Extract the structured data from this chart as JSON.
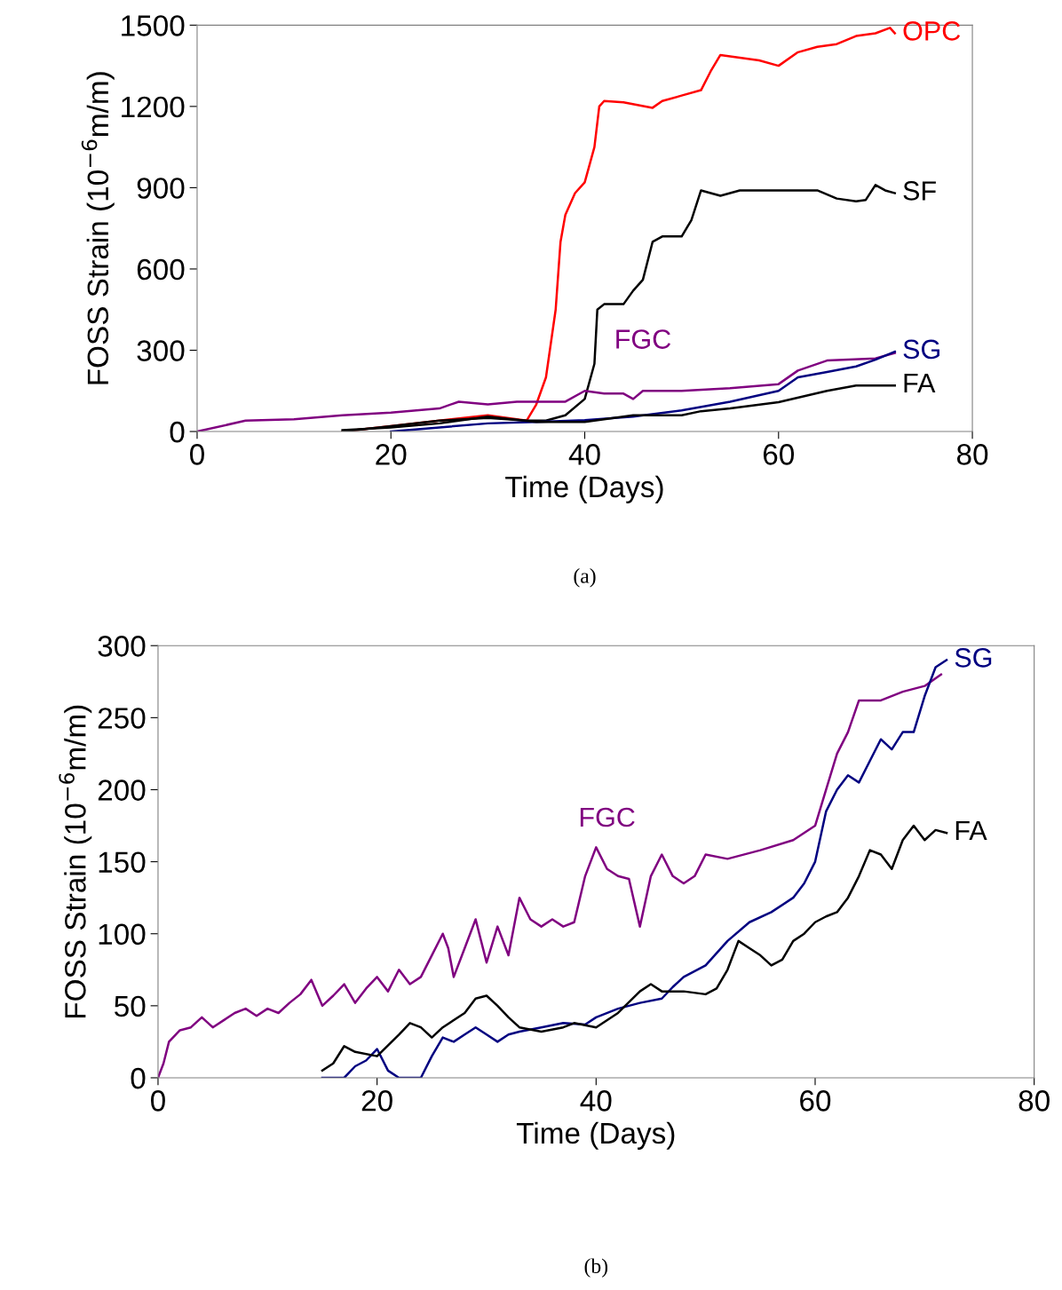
{
  "chart_data": [
    {
      "type": "line",
      "xlabel": "Time (Days)",
      "ylabel": "FOSS Strain (10$^{−6}$m/m)",
      "xlim": [
        0,
        80
      ],
      "ylim": [
        0,
        1500
      ],
      "xticks": [
        0,
        20,
        40,
        60,
        80
      ],
      "yticks": [
        0,
        300,
        600,
        900,
        1200,
        1500
      ],
      "grid": false,
      "marker": "none",
      "line_style": "solid",
      "series": [
        {
          "name": "OPC",
          "color": "#ff0000",
          "x": [
            15,
            20,
            25,
            30,
            33,
            34,
            35,
            36,
            37,
            37.5,
            38,
            39,
            40,
            41,
            41.5,
            42,
            44,
            47,
            48,
            50,
            52,
            53,
            54,
            56,
            58,
            60,
            62,
            64,
            66,
            68,
            70,
            71.5,
            72
          ],
          "values": [
            0,
            20,
            40,
            60,
            45,
            40,
            100,
            200,
            450,
            700,
            800,
            880,
            920,
            1050,
            1200,
            1220,
            1215,
            1195,
            1220,
            1240,
            1260,
            1330,
            1390,
            1380,
            1370,
            1350,
            1400,
            1420,
            1430,
            1460,
            1470,
            1490,
            1470
          ]
        },
        {
          "name": "SF",
          "color": "#000000",
          "x": [
            15,
            20,
            25,
            30,
            34,
            36,
            38,
            40,
            41,
            41.3,
            42,
            44,
            45,
            46,
            47,
            48,
            50,
            51,
            52,
            54,
            56,
            60,
            64,
            66,
            68,
            69,
            70,
            71,
            72
          ],
          "values": [
            0,
            20,
            40,
            50,
            40,
            40,
            60,
            120,
            250,
            450,
            470,
            470,
            520,
            560,
            700,
            720,
            720,
            780,
            890,
            870,
            890,
            890,
            890,
            860,
            850,
            855,
            910,
            890,
            880
          ]
        },
        {
          "name": "FGC",
          "color": "#800080",
          "x": [
            0,
            5,
            10,
            15,
            20,
            25,
            27,
            30,
            33,
            35,
            38,
            40,
            42,
            44,
            45,
            46,
            50,
            55,
            60,
            62,
            65,
            70,
            72
          ],
          "values": [
            0,
            40,
            45,
            60,
            70,
            85,
            110,
            100,
            110,
            110,
            110,
            150,
            140,
            140,
            120,
            150,
            150,
            160,
            175,
            225,
            262,
            270,
            290
          ]
        },
        {
          "name": "SG",
          "color": "#000080",
          "x": [
            20,
            25,
            30,
            35,
            40,
            45,
            50,
            55,
            60,
            62,
            65,
            68,
            70,
            72
          ],
          "values": [
            0,
            15,
            30,
            35,
            42,
            55,
            78,
            110,
            150,
            200,
            220,
            240,
            265,
            295
          ]
        },
        {
          "name": "FA",
          "color": "#000000",
          "x": [
            15,
            20,
            25,
            30,
            35,
            40,
            45,
            50,
            52,
            55,
            60,
            65,
            68,
            70,
            72
          ],
          "values": [
            5,
            15,
            30,
            55,
            35,
            35,
            60,
            60,
            75,
            85,
            108,
            150,
            170,
            170,
            170
          ]
        }
      ],
      "annotations": [
        "(a)"
      ]
    },
    {
      "type": "line",
      "xlabel": "Time (Days)",
      "ylabel": "FOSS Strain (10$^{−6}$m/m)",
      "xlim": [
        0,
        80
      ],
      "ylim": [
        0,
        300
      ],
      "xticks": [
        0,
        20,
        40,
        60,
        80
      ],
      "yticks": [
        0,
        50,
        100,
        150,
        200,
        250,
        300
      ],
      "grid": false,
      "marker": "none",
      "line_style": "solid",
      "series": [
        {
          "name": "FGC",
          "color": "#800080",
          "x": [
            0,
            0.5,
            1,
            2,
            3,
            4,
            5,
            6,
            7,
            8,
            9,
            10,
            11,
            12,
            13,
            14,
            15,
            16,
            17,
            18,
            19,
            20,
            21,
            22,
            23,
            24,
            25,
            26,
            26.5,
            27,
            28,
            29,
            29.5,
            30,
            31,
            32,
            33,
            34,
            35,
            36,
            37,
            38,
            39,
            40,
            41,
            42,
            43,
            44,
            45,
            46,
            47,
            48,
            49,
            50,
            52,
            55,
            58,
            60,
            61,
            62,
            63,
            64,
            66,
            68,
            70,
            71.5
          ],
          "values": [
            0,
            10,
            25,
            33,
            35,
            42,
            35,
            40,
            45,
            48,
            43,
            48,
            45,
            52,
            58,
            68,
            50,
            57,
            65,
            52,
            62,
            70,
            60,
            75,
            65,
            70,
            85,
            100,
            90,
            70,
            90,
            110,
            95,
            80,
            105,
            85,
            125,
            110,
            105,
            110,
            105,
            108,
            140,
            160,
            145,
            140,
            138,
            105,
            140,
            155,
            140,
            135,
            140,
            155,
            152,
            158,
            165,
            175,
            200,
            225,
            240,
            262,
            262,
            268,
            272,
            280
          ]
        },
        {
          "name": "SG",
          "color": "#000080",
          "x": [
            15,
            17,
            18,
            19,
            20,
            21,
            22,
            24,
            25,
            26,
            27,
            28,
            29,
            30,
            31,
            32,
            33,
            35,
            37,
            39,
            40,
            42,
            44,
            46,
            47,
            48,
            50,
            52,
            54,
            56,
            58,
            59,
            60,
            61,
            62,
            63,
            64,
            65,
            66,
            67,
            68,
            69,
            70,
            71,
            72
          ],
          "values": [
            0,
            0,
            8,
            12,
            20,
            5,
            0,
            0,
            15,
            28,
            25,
            30,
            35,
            30,
            25,
            30,
            32,
            35,
            38,
            37,
            42,
            48,
            52,
            55,
            63,
            70,
            78,
            95,
            108,
            115,
            125,
            135,
            150,
            185,
            200,
            210,
            205,
            220,
            235,
            228,
            240,
            240,
            265,
            285,
            290
          ]
        },
        {
          "name": "FA",
          "color": "#000000",
          "x": [
            15,
            16,
            17,
            18,
            20,
            22,
            23,
            24,
            25,
            26,
            28,
            29,
            30,
            31,
            32,
            33,
            35,
            37,
            38,
            40,
            42,
            44,
            45,
            46,
            48,
            50,
            51,
            52,
            53,
            54,
            55,
            56,
            57,
            58,
            59,
            60,
            61,
            62,
            63,
            64,
            65,
            66,
            67,
            68,
            69,
            70,
            71,
            72
          ],
          "values": [
            5,
            10,
            22,
            18,
            15,
            30,
            38,
            35,
            28,
            35,
            45,
            55,
            57,
            50,
            42,
            35,
            32,
            35,
            38,
            35,
            45,
            60,
            65,
            60,
            60,
            58,
            62,
            75,
            95,
            90,
            85,
            78,
            82,
            95,
            100,
            108,
            112,
            115,
            125,
            140,
            158,
            155,
            145,
            165,
            175,
            165,
            172,
            170
          ]
        }
      ],
      "annotations": [
        "(b)"
      ]
    }
  ]
}
